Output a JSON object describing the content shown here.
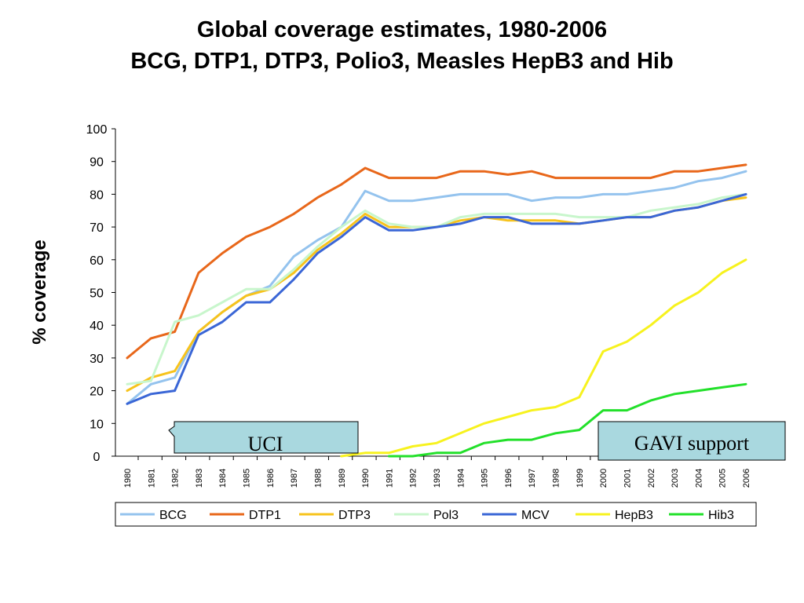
{
  "title": {
    "line1": "Global coverage estimates, 1980-2006",
    "line2": "BCG, DTP1, DTP3, Polio3, Measles HepB3 and Hib"
  },
  "chart_data": {
    "type": "line",
    "ylabel": "% coverage",
    "ylim": [
      0,
      100
    ],
    "yticks": [
      0,
      10,
      20,
      30,
      40,
      50,
      60,
      70,
      80,
      90,
      100
    ],
    "grid": false,
    "legend_position": "bottom",
    "x": [
      "1980",
      "1981",
      "1982",
      "1983",
      "1984",
      "1985",
      "1986",
      "1987",
      "1988",
      "1989",
      "1990",
      "1991",
      "1992",
      "1993",
      "1994",
      "1995",
      "1996",
      "1997",
      "1998",
      "1999",
      "2000",
      "2001",
      "2002",
      "2003",
      "2004",
      "2005",
      "2006"
    ],
    "series": [
      {
        "name": "BCG",
        "color": "#94c3ee",
        "values": [
          16,
          22,
          24,
          38,
          44,
          49,
          52,
          61,
          66,
          70,
          81,
          78,
          78,
          79,
          80,
          80,
          80,
          78,
          79,
          79,
          80,
          80,
          81,
          82,
          84,
          85,
          87
        ]
      },
      {
        "name": "DTP1",
        "color": "#e8671a",
        "values": [
          30,
          36,
          38,
          56,
          62,
          67,
          70,
          74,
          79,
          83,
          88,
          85,
          85,
          85,
          87,
          87,
          86,
          87,
          85,
          85,
          85,
          85,
          85,
          87,
          87,
          88,
          89
        ]
      },
      {
        "name": "DTP3",
        "color": "#f7c31c",
        "values": [
          20,
          24,
          26,
          38,
          44,
          49,
          51,
          56,
          63,
          68,
          74,
          70,
          70,
          70,
          72,
          73,
          72,
          72,
          72,
          71,
          72,
          73,
          73,
          75,
          76,
          78,
          79
        ]
      },
      {
        "name": "Pol3",
        "color": "#c8f6cc",
        "values": [
          22,
          23,
          41,
          43,
          47,
          51,
          51,
          57,
          64,
          70,
          75,
          71,
          70,
          70,
          73,
          74,
          74,
          74,
          74,
          73,
          73,
          73,
          75,
          76,
          77,
          79,
          80
        ]
      },
      {
        "name": "MCV",
        "color": "#3a66d6",
        "values": [
          16,
          19,
          20,
          37,
          41,
          47,
          47,
          54,
          62,
          67,
          73,
          69,
          69,
          70,
          71,
          73,
          73,
          71,
          71,
          71,
          72,
          73,
          73,
          75,
          76,
          78,
          80
        ]
      },
      {
        "name": "HepB3",
        "color": "#f7f21e",
        "values": [
          null,
          null,
          null,
          null,
          null,
          null,
          null,
          null,
          null,
          0,
          1,
          1,
          3,
          4,
          7,
          10,
          12,
          14,
          15,
          18,
          32,
          35,
          40,
          46,
          50,
          56,
          60
        ]
      },
      {
        "name": "Hib3",
        "color": "#22e02a",
        "values": [
          null,
          null,
          null,
          null,
          null,
          null,
          null,
          null,
          null,
          null,
          null,
          0,
          0,
          1,
          1,
          4,
          5,
          5,
          7,
          8,
          14,
          14,
          17,
          19,
          20,
          21,
          22
        ]
      }
    ],
    "annotations": [
      {
        "text": "UCI",
        "bg": "#a9d8df"
      },
      {
        "text": "GAVI support",
        "bg": "#a9d8df"
      }
    ]
  }
}
